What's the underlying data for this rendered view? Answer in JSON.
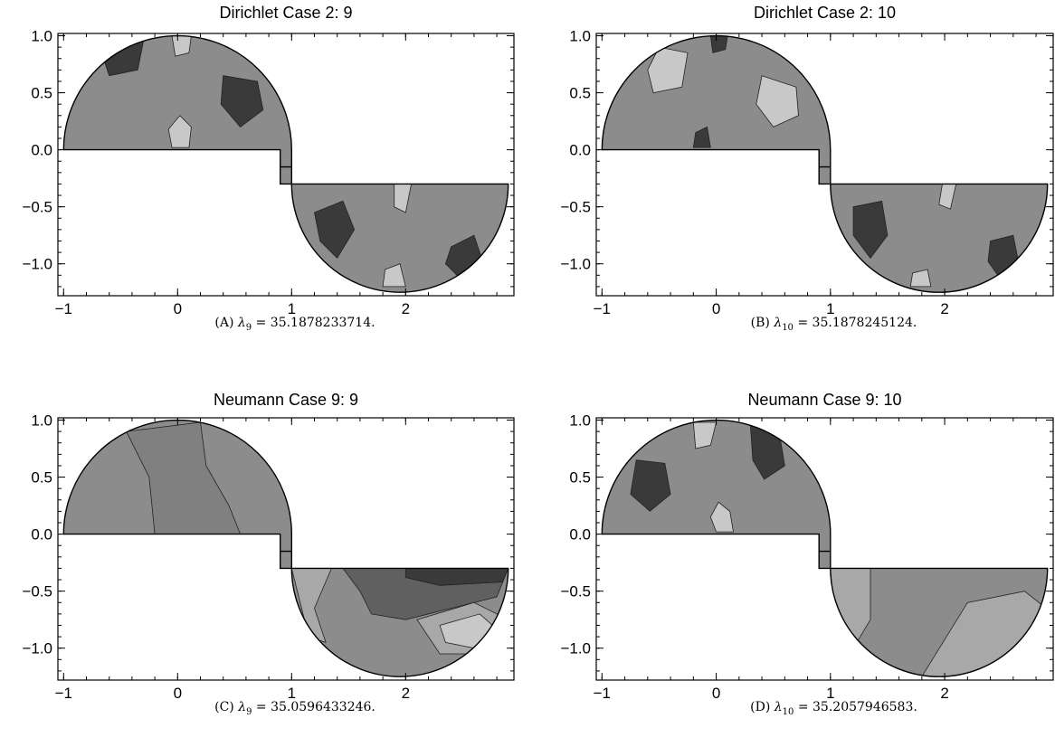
{
  "chart_data": [
    {
      "type": "contour",
      "title": "Dirichlet Case 2: 9",
      "caption": {
        "label": "(A)",
        "symbol": "λ",
        "subscript": "9",
        "value": "= 35.1878233714."
      },
      "x_ticks": [
        "−1",
        "0",
        "1",
        "2"
      ],
      "y_ticks": [
        "1.0",
        "0.5",
        "0.0",
        "−0.5",
        "−1.0"
      ],
      "xlim": [
        -1.05,
        2.95
      ],
      "ylim": [
        -1.28,
        1.02
      ],
      "grid": false,
      "regions": [
        {
          "level": 2,
          "points": [
            [
              -0.55,
              0.98
            ],
            [
              -0.3,
              0.95
            ],
            [
              -0.35,
              0.7
            ],
            [
              -0.6,
              0.65
            ],
            [
              -0.65,
              0.8
            ]
          ]
        },
        {
          "level": 6,
          "points": [
            [
              -0.05,
              1.0
            ],
            [
              0.12,
              1.0
            ],
            [
              0.1,
              0.85
            ],
            [
              -0.02,
              0.82
            ]
          ]
        },
        {
          "level": 6,
          "points": [
            [
              -0.05,
              0.02
            ],
            [
              0.1,
              0.02
            ],
            [
              0.12,
              0.2
            ],
            [
              0.02,
              0.3
            ],
            [
              -0.08,
              0.18
            ]
          ]
        },
        {
          "level": 2,
          "points": [
            [
              0.4,
              0.65
            ],
            [
              0.7,
              0.6
            ],
            [
              0.75,
              0.35
            ],
            [
              0.55,
              0.2
            ],
            [
              0.38,
              0.4
            ]
          ]
        },
        {
          "level": 2,
          "points": [
            [
              1.2,
              -0.55
            ],
            [
              1.45,
              -0.45
            ],
            [
              1.55,
              -0.7
            ],
            [
              1.4,
              -0.95
            ],
            [
              1.25,
              -0.8
            ]
          ]
        },
        {
          "level": 6,
          "points": [
            [
              1.9,
              -0.3
            ],
            [
              2.05,
              -0.3
            ],
            [
              2.0,
              -0.55
            ],
            [
              1.9,
              -0.5
            ]
          ]
        },
        {
          "level": 6,
          "points": [
            [
              1.8,
              -1.2
            ],
            [
              2.0,
              -1.2
            ],
            [
              1.95,
              -1.0
            ],
            [
              1.82,
              -1.05
            ]
          ]
        },
        {
          "level": 2,
          "points": [
            [
              2.4,
              -0.85
            ],
            [
              2.6,
              -0.75
            ],
            [
              2.7,
              -1.05
            ],
            [
              2.5,
              -1.15
            ],
            [
              2.35,
              -1.0
            ]
          ]
        }
      ]
    },
    {
      "type": "contour",
      "title": "Dirichlet Case 2: 10",
      "caption": {
        "label": "(B)",
        "symbol": "λ",
        "subscript": "10",
        "value": "= 35.1878245124."
      },
      "x_ticks": [
        "−1",
        "0",
        "1",
        "2"
      ],
      "y_ticks": [
        "1.0",
        "0.5",
        "0.0",
        "−0.5",
        "−1.0"
      ],
      "xlim": [
        -1.05,
        2.95
      ],
      "ylim": [
        -1.28,
        1.02
      ],
      "grid": false,
      "regions": [
        {
          "level": 6,
          "points": [
            [
              -0.5,
              0.9
            ],
            [
              -0.25,
              0.85
            ],
            [
              -0.3,
              0.55
            ],
            [
              -0.55,
              0.5
            ],
            [
              -0.6,
              0.7
            ]
          ]
        },
        {
          "level": 2,
          "points": [
            [
              -0.05,
              1.0
            ],
            [
              0.1,
              1.0
            ],
            [
              0.08,
              0.88
            ],
            [
              -0.03,
              0.85
            ]
          ]
        },
        {
          "level": 2,
          "points": [
            [
              -0.2,
              0.02
            ],
            [
              -0.05,
              0.02
            ],
            [
              -0.08,
              0.2
            ],
            [
              -0.18,
              0.15
            ]
          ]
        },
        {
          "level": 6,
          "points": [
            [
              0.4,
              0.65
            ],
            [
              0.7,
              0.55
            ],
            [
              0.72,
              0.3
            ],
            [
              0.5,
              0.2
            ],
            [
              0.35,
              0.4
            ]
          ]
        },
        {
          "level": 2,
          "points": [
            [
              1.2,
              -0.5
            ],
            [
              1.45,
              -0.45
            ],
            [
              1.5,
              -0.75
            ],
            [
              1.35,
              -0.95
            ],
            [
              1.2,
              -0.75
            ]
          ]
        },
        {
          "level": 6,
          "points": [
            [
              1.98,
              -0.3
            ],
            [
              2.1,
              -0.3
            ],
            [
              2.05,
              -0.52
            ],
            [
              1.95,
              -0.48
            ]
          ]
        },
        {
          "level": 6,
          "points": [
            [
              1.7,
              -1.2
            ],
            [
              1.88,
              -1.2
            ],
            [
              1.85,
              -1.05
            ],
            [
              1.72,
              -1.08
            ]
          ]
        },
        {
          "level": 2,
          "points": [
            [
              2.4,
              -0.8
            ],
            [
              2.6,
              -0.75
            ],
            [
              2.65,
              -1.0
            ],
            [
              2.5,
              -1.15
            ],
            [
              2.38,
              -0.98
            ]
          ]
        }
      ]
    },
    {
      "type": "contour",
      "title": "Neumann Case 9: 9",
      "caption": {
        "label": "(C)",
        "symbol": "λ",
        "subscript": "9",
        "value": "= 35.0596433246."
      },
      "x_ticks": [
        "−1",
        "0",
        "1",
        "2"
      ],
      "y_ticks": [
        "1.0",
        "0.5",
        "0.0",
        "−0.5",
        "−1.0"
      ],
      "xlim": [
        -1.05,
        2.95
      ],
      "ylim": [
        -1.28,
        1.02
      ],
      "grid": false,
      "regions": [
        {
          "level": 4,
          "points": [
            [
              -0.45,
              0.9
            ],
            [
              0.2,
              0.98
            ],
            [
              0.25,
              0.6
            ],
            [
              0.45,
              0.25
            ],
            [
              0.55,
              0.0
            ],
            [
              -0.2,
              0.0
            ],
            [
              -0.25,
              0.5
            ]
          ]
        },
        {
          "level": 5,
          "points": [
            [
              1.0,
              -0.3
            ],
            [
              1.35,
              -0.3
            ],
            [
              1.2,
              -0.65
            ],
            [
              1.3,
              -0.95
            ],
            [
              1.15,
              -0.9
            ]
          ]
        },
        {
          "level": 3,
          "points": [
            [
              1.45,
              -0.3
            ],
            [
              2.9,
              -0.3
            ],
            [
              2.8,
              -0.55
            ],
            [
              2.4,
              -0.65
            ],
            [
              2.0,
              -0.75
            ],
            [
              1.7,
              -0.7
            ],
            [
              1.6,
              -0.5
            ]
          ]
        },
        {
          "level": 2,
          "points": [
            [
              2.0,
              -0.3
            ],
            [
              2.9,
              -0.3
            ],
            [
              2.85,
              -0.42
            ],
            [
              2.3,
              -0.45
            ],
            [
              2.0,
              -0.38
            ]
          ]
        },
        {
          "level": 5,
          "points": [
            [
              2.1,
              -0.75
            ],
            [
              2.6,
              -0.6
            ],
            [
              2.9,
              -0.75
            ],
            [
              2.7,
              -1.05
            ],
            [
              2.3,
              -1.05
            ]
          ]
        },
        {
          "level": 6,
          "points": [
            [
              2.3,
              -0.8
            ],
            [
              2.65,
              -0.7
            ],
            [
              2.82,
              -0.85
            ],
            [
              2.6,
              -1.0
            ],
            [
              2.35,
              -0.95
            ]
          ]
        }
      ]
    },
    {
      "type": "contour",
      "title": "Neumann Case 9: 10",
      "caption": {
        "label": "(D)",
        "symbol": "λ",
        "subscript": "10",
        "value": "= 35.2057946583."
      },
      "x_ticks": [
        "−1",
        "0",
        "1",
        "2"
      ],
      "y_ticks": [
        "1.0",
        "0.5",
        "0.0",
        "−0.5",
        "−1.0"
      ],
      "xlim": [
        -1.05,
        2.95
      ],
      "ylim": [
        -1.28,
        1.02
      ],
      "grid": false,
      "regions": [
        {
          "level": 2,
          "points": [
            [
              -0.7,
              0.65
            ],
            [
              -0.45,
              0.62
            ],
            [
              -0.4,
              0.35
            ],
            [
              -0.58,
              0.2
            ],
            [
              -0.75,
              0.35
            ]
          ]
        },
        {
          "level": 6,
          "points": [
            [
              -0.2,
              0.98
            ],
            [
              0.0,
              0.98
            ],
            [
              -0.05,
              0.78
            ],
            [
              -0.18,
              0.75
            ]
          ]
        },
        {
          "level": 6,
          "points": [
            [
              0.0,
              0.02
            ],
            [
              0.15,
              0.02
            ],
            [
              0.12,
              0.2
            ],
            [
              0.02,
              0.28
            ],
            [
              -0.05,
              0.15
            ]
          ]
        },
        {
          "level": 2,
          "points": [
            [
              0.3,
              0.95
            ],
            [
              0.55,
              0.9
            ],
            [
              0.6,
              0.6
            ],
            [
              0.42,
              0.48
            ],
            [
              0.32,
              0.65
            ]
          ]
        },
        {
          "level": 5,
          "points": [
            [
              1.0,
              -0.3
            ],
            [
              1.35,
              -0.3
            ],
            [
              1.35,
              -0.75
            ],
            [
              1.2,
              -1.0
            ],
            [
              1.05,
              -0.95
            ]
          ]
        },
        {
          "level": 5,
          "points": [
            [
              1.8,
              -1.25
            ],
            [
              2.2,
              -0.6
            ],
            [
              2.7,
              -0.5
            ],
            [
              2.95,
              -0.7
            ],
            [
              2.7,
              -1.05
            ],
            [
              2.2,
              -1.25
            ]
          ]
        }
      ]
    }
  ]
}
